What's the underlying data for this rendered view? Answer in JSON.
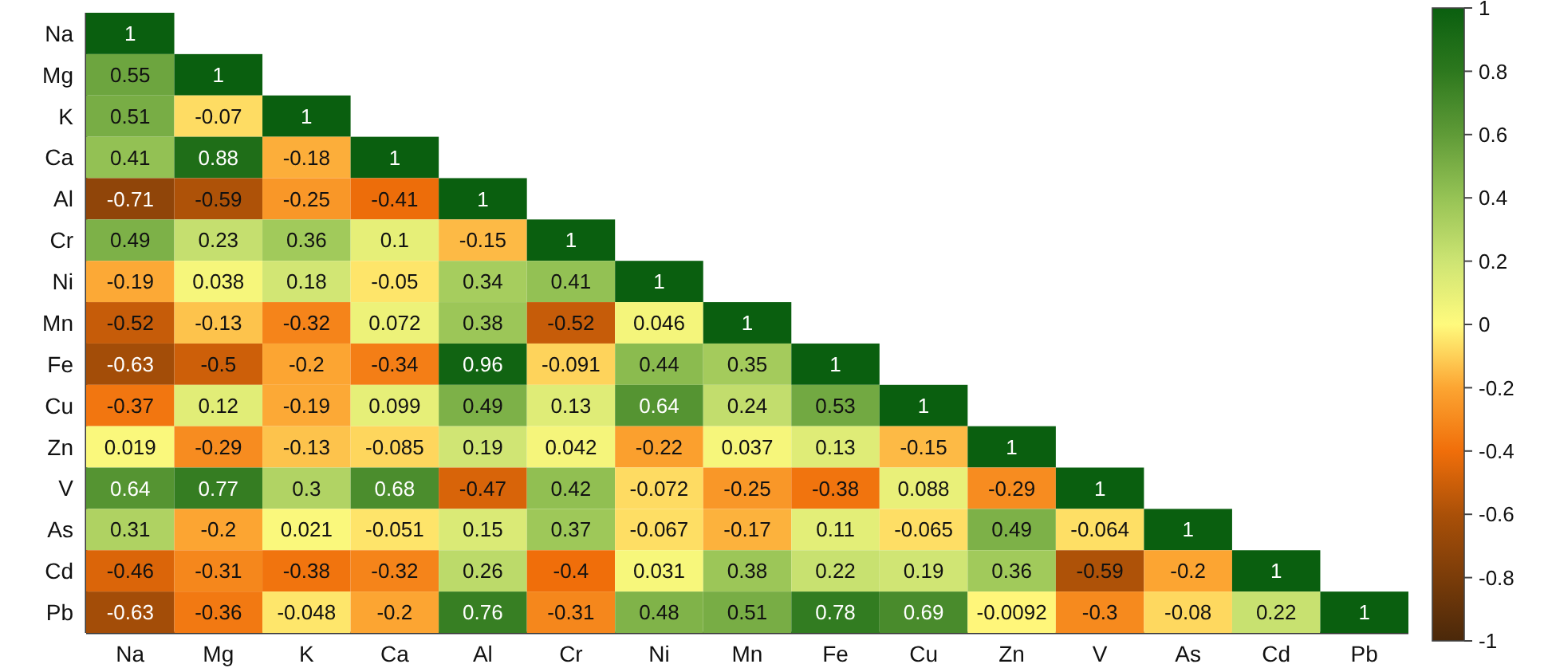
{
  "chart_data": {
    "type": "heatmap",
    "categories": [
      "Na",
      "Mg",
      "K",
      "Ca",
      "Al",
      "Cr",
      "Ni",
      "Mn",
      "Fe",
      "Cu",
      "Zn",
      "V",
      "As",
      "Cd",
      "Pb"
    ],
    "y_categories": [
      "Na",
      "Mg",
      "K",
      "Ca",
      "Al",
      "Cr",
      "Ni",
      "Mn",
      "Fe",
      "Cu",
      "Zn",
      "V",
      "As",
      "Cd",
      "Pb"
    ],
    "cells": [
      [
        1,
        null,
        null,
        null,
        null,
        null,
        null,
        null,
        null,
        null,
        null,
        null,
        null,
        null,
        null
      ],
      [
        0.55,
        1,
        null,
        null,
        null,
        null,
        null,
        null,
        null,
        null,
        null,
        null,
        null,
        null,
        null
      ],
      [
        0.51,
        -0.07,
        1,
        null,
        null,
        null,
        null,
        null,
        null,
        null,
        null,
        null,
        null,
        null,
        null
      ],
      [
        0.41,
        0.88,
        -0.18,
        1,
        null,
        null,
        null,
        null,
        null,
        null,
        null,
        null,
        null,
        null,
        null
      ],
      [
        -0.71,
        -0.59,
        -0.25,
        -0.41,
        1,
        null,
        null,
        null,
        null,
        null,
        null,
        null,
        null,
        null,
        null
      ],
      [
        0.49,
        0.23,
        0.36,
        0.1,
        -0.15,
        1,
        null,
        null,
        null,
        null,
        null,
        null,
        null,
        null,
        null
      ],
      [
        -0.19,
        0.038,
        0.18,
        -0.05,
        0.34,
        0.41,
        1,
        null,
        null,
        null,
        null,
        null,
        null,
        null,
        null
      ],
      [
        -0.52,
        -0.13,
        -0.32,
        0.072,
        0.38,
        -0.52,
        0.046,
        1,
        null,
        null,
        null,
        null,
        null,
        null,
        null
      ],
      [
        -0.63,
        -0.5,
        -0.2,
        -0.34,
        0.96,
        -0.091,
        0.44,
        0.35,
        1,
        null,
        null,
        null,
        null,
        null,
        null
      ],
      [
        -0.37,
        0.12,
        -0.19,
        0.099,
        0.49,
        0.13,
        0.64,
        0.24,
        0.53,
        1,
        null,
        null,
        null,
        null,
        null
      ],
      [
        0.019,
        -0.29,
        -0.13,
        -0.085,
        0.19,
        0.042,
        -0.22,
        0.037,
        0.13,
        -0.15,
        1,
        null,
        null,
        null,
        null
      ],
      [
        0.64,
        0.77,
        0.3,
        0.68,
        -0.47,
        0.42,
        -0.072,
        -0.25,
        -0.38,
        0.088,
        -0.29,
        1,
        null,
        null,
        null
      ],
      [
        0.31,
        -0.2,
        0.021,
        -0.051,
        0.15,
        0.37,
        -0.067,
        -0.17,
        0.11,
        -0.065,
        0.49,
        -0.064,
        1,
        null,
        null
      ],
      [
        -0.46,
        -0.31,
        -0.38,
        -0.32,
        0.26,
        -0.4,
        0.031,
        0.38,
        0.22,
        0.19,
        0.36,
        -0.59,
        -0.2,
        1,
        null
      ],
      [
        -0.63,
        -0.36,
        -0.048,
        -0.2,
        0.76,
        -0.31,
        0.48,
        0.51,
        0.78,
        0.69,
        -0.0092,
        -0.3,
        -0.08,
        0.22,
        1
      ]
    ],
    "data_labels": true,
    "clim": [
      -1,
      1
    ],
    "cticks": [
      1,
      0.8,
      0.6,
      0.4,
      0.2,
      0,
      -0.2,
      -0.4,
      -0.6,
      -0.8,
      -1
    ]
  }
}
